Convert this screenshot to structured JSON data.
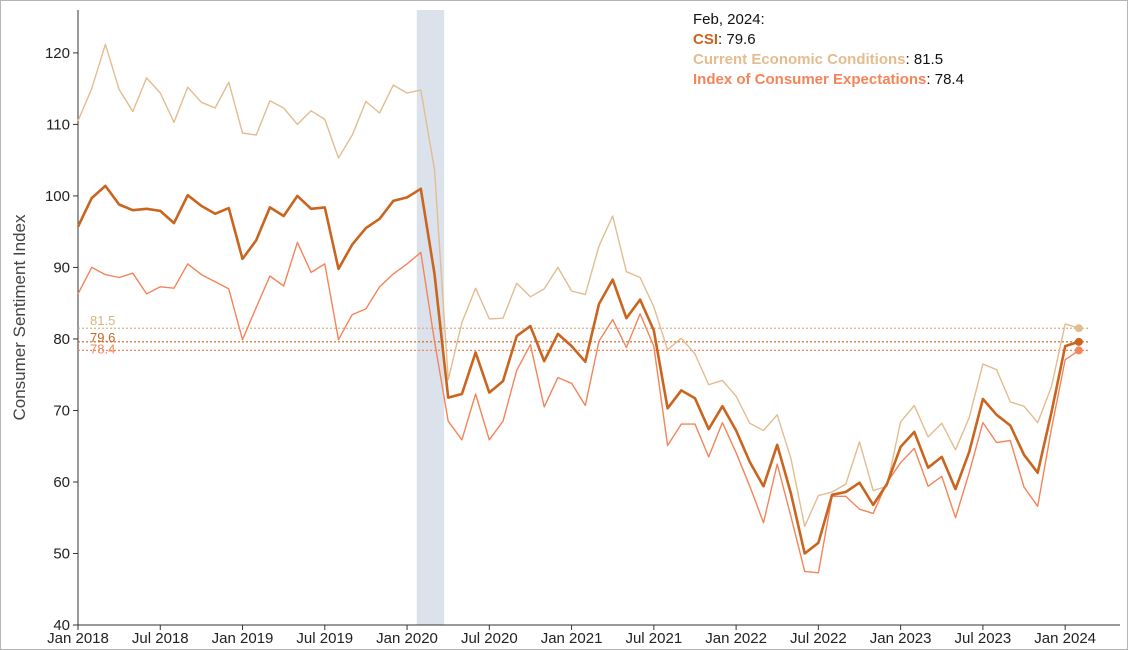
{
  "chart_data": {
    "type": "line",
    "ylabel": "Consumer Sentiment Index",
    "ylim": [
      40,
      126
    ],
    "y_ticks": [
      40,
      50,
      60,
      70,
      80,
      90,
      100,
      110,
      120
    ],
    "x_range": [
      "2018-01",
      "2024-05"
    ],
    "x_ticks": [
      {
        "label": "Jan 2018",
        "date": "2018-01"
      },
      {
        "label": "Jul 2018",
        "date": "2018-07"
      },
      {
        "label": "Jan 2019",
        "date": "2019-01"
      },
      {
        "label": "Jul 2019",
        "date": "2019-07"
      },
      {
        "label": "Jan 2020",
        "date": "2020-01"
      },
      {
        "label": "Jul 2020",
        "date": "2020-07"
      },
      {
        "label": "Jan 2021",
        "date": "2021-01"
      },
      {
        "label": "Jul 2021",
        "date": "2021-07"
      },
      {
        "label": "Jan 2022",
        "date": "2022-01"
      },
      {
        "label": "Jul 2022",
        "date": "2022-07"
      },
      {
        "label": "Jan 2023",
        "date": "2023-01"
      },
      {
        "label": "Jul 2023",
        "date": "2023-07"
      },
      {
        "label": "Jan 2024",
        "date": "2024-01"
      }
    ],
    "recession_shading": {
      "start": "2020-02",
      "end": "2020-04",
      "color": "#dbe2ec"
    },
    "start_date": "2018-01",
    "grid": false,
    "series": [
      {
        "name": "CSI",
        "color": "#c9651f",
        "values": [
          95.7,
          99.7,
          101.4,
          98.8,
          98.0,
          98.2,
          97.9,
          96.2,
          100.1,
          98.6,
          97.5,
          98.3,
          91.2,
          93.8,
          98.4,
          97.2,
          100.0,
          98.2,
          98.4,
          89.8,
          93.2,
          95.5,
          96.8,
          99.3,
          99.8,
          101.0,
          89.1,
          71.8,
          72.3,
          78.1,
          72.5,
          74.1,
          80.4,
          81.8,
          76.9,
          80.7,
          79.0,
          76.8,
          84.9,
          88.3,
          82.9,
          85.5,
          81.2,
          70.3,
          72.8,
          71.7,
          67.4,
          70.6,
          67.2,
          62.8,
          59.4,
          65.2,
          58.4,
          50.0,
          51.5,
          58.2,
          58.6,
          59.9,
          56.8,
          59.7,
          64.9,
          67.0,
          62.0,
          63.5,
          59.0,
          64.2,
          71.6,
          69.4,
          67.9,
          63.8,
          61.3,
          69.7,
          79.0,
          79.6
        ]
      },
      {
        "name": "Current Economic Conditions",
        "color": "#e3bc8f",
        "values": [
          110.5,
          115.0,
          121.2,
          114.9,
          111.8,
          116.5,
          114.4,
          110.3,
          115.2,
          113.1,
          112.3,
          115.9,
          108.8,
          108.5,
          113.3,
          112.3,
          110.0,
          111.9,
          110.7,
          105.3,
          108.5,
          113.2,
          111.6,
          115.5,
          114.4,
          114.8,
          103.7,
          74.3,
          82.3,
          87.1,
          82.8,
          82.9,
          87.8,
          85.9,
          87.0,
          90.0,
          86.7,
          86.2,
          93.0,
          97.2,
          89.4,
          88.6,
          84.5,
          78.5,
          80.1,
          77.9,
          73.6,
          74.2,
          72.0,
          68.2,
          67.2,
          69.4,
          63.3,
          53.8,
          58.1,
          58.6,
          59.7,
          65.6,
          58.8,
          59.4,
          68.4,
          70.7,
          66.3,
          68.2,
          64.5,
          69.0,
          76.5,
          75.7,
          71.2,
          70.6,
          68.3,
          73.3,
          82.1,
          81.5
        ]
      },
      {
        "name": "Index of Consumer Expectations",
        "color": "#f4845a",
        "values": [
          86.3,
          90.0,
          89.0,
          88.6,
          89.2,
          86.3,
          87.3,
          87.1,
          90.5,
          89.0,
          88.0,
          87.0,
          79.9,
          84.4,
          88.8,
          87.4,
          93.5,
          89.3,
          90.5,
          79.9,
          83.4,
          84.2,
          87.3,
          89.1,
          90.5,
          92.1,
          79.7,
          68.5,
          65.9,
          72.3,
          65.9,
          68.5,
          75.6,
          79.2,
          70.5,
          74.6,
          73.8,
          70.7,
          79.7,
          82.7,
          78.8,
          83.5,
          79.0,
          65.1,
          68.1,
          68.1,
          63.5,
          68.3,
          64.1,
          59.4,
          54.3,
          62.5,
          55.2,
          47.5,
          47.3,
          58.0,
          58.0,
          56.2,
          55.6,
          59.9,
          62.7,
          64.7,
          59.4,
          60.8,
          55.0,
          61.3,
          68.3,
          65.5,
          65.8,
          59.3,
          56.6,
          67.4,
          77.1,
          78.4
        ]
      }
    ],
    "reference_lines": [
      {
        "label": "81.5",
        "value": 81.5,
        "color": "#d7b386"
      },
      {
        "label": "79.6",
        "value": 79.6,
        "color": "#c9651f"
      },
      {
        "label": "78.4",
        "value": 78.4,
        "color": "#f4845a"
      }
    ],
    "annotation": {
      "date_label": "Feb, 2024:",
      "rows": [
        {
          "name": "CSI",
          "value": "79.6",
          "color": "#c9651f"
        },
        {
          "name": "Current Economic Conditions",
          "value": "81.5",
          "color": "#e3bc8f"
        },
        {
          "name": "Index of Consumer Expectations",
          "value": "78.4",
          "color": "#f4845a"
        }
      ]
    }
  }
}
